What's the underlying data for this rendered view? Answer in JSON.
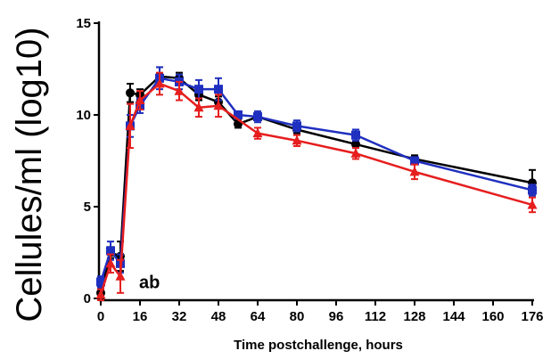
{
  "chart_data": {
    "type": "line",
    "xlabel": "Time postchallenge, hours",
    "ylabel": "Cellules/ml (log10)",
    "xlim": [
      0,
      176
    ],
    "ylim": [
      0,
      15
    ],
    "x_ticks": [
      0,
      16,
      32,
      48,
      64,
      80,
      96,
      112,
      128,
      144,
      160,
      176
    ],
    "y_ticks": [
      0,
      5,
      10,
      15
    ],
    "annotations": [
      {
        "text": "ab",
        "x": 12,
        "y": 0.5
      }
    ],
    "series": [
      {
        "color": "#000000",
        "marker": "circle",
        "points": [
          {
            "x": 0,
            "y": 0.3,
            "err": 0.3
          },
          {
            "x": 4,
            "y": 2.5,
            "err": 0.3
          },
          {
            "x": 8,
            "y": 2.3,
            "err": 0.8
          },
          {
            "x": 12,
            "y": 11.2,
            "err": 0.5
          },
          {
            "x": 16,
            "y": 11.1,
            "err": 0.3
          },
          {
            "x": 24,
            "y": 12.1,
            "err": 0.5
          },
          {
            "x": 32,
            "y": 12.0,
            "err": 0.3
          },
          {
            "x": 40,
            "y": 11.1,
            "err": 0.3
          },
          {
            "x": 48,
            "y": 10.7,
            "err": 0.3
          },
          {
            "x": 56,
            "y": 9.5,
            "err": 0.2
          },
          {
            "x": 64,
            "y": 9.9,
            "err": 0.2
          },
          {
            "x": 80,
            "y": 9.2,
            "err": 0.2
          },
          {
            "x": 104,
            "y": 8.4,
            "err": 0.2
          },
          {
            "x": 128,
            "y": 7.6,
            "err": 0.2
          },
          {
            "x": 176,
            "y": 6.3,
            "err": 0.7
          }
        ]
      },
      {
        "color": "#1f2fbf",
        "marker": "square",
        "points": [
          {
            "x": 0,
            "y": 0.9,
            "err": 0.3
          },
          {
            "x": 4,
            "y": 2.6,
            "err": 0.5
          },
          {
            "x": 8,
            "y": 1.9,
            "err": 0.5
          },
          {
            "x": 12,
            "y": 9.4,
            "err": 0.6
          },
          {
            "x": 16,
            "y": 10.5,
            "err": 0.4
          },
          {
            "x": 24,
            "y": 12.0,
            "err": 0.6
          },
          {
            "x": 32,
            "y": 11.8,
            "err": 0.4
          },
          {
            "x": 40,
            "y": 11.4,
            "err": 0.5
          },
          {
            "x": 48,
            "y": 11.4,
            "err": 0.6
          },
          {
            "x": 56,
            "y": 10.0,
            "err": 0.2
          },
          {
            "x": 64,
            "y": 9.9,
            "err": 0.3
          },
          {
            "x": 80,
            "y": 9.4,
            "err": 0.3
          },
          {
            "x": 104,
            "y": 8.9,
            "err": 0.3
          },
          {
            "x": 128,
            "y": 7.5,
            "err": 0.2
          },
          {
            "x": 176,
            "y": 5.9,
            "err": 0.3
          }
        ]
      },
      {
        "color": "#e61e1e",
        "marker": "triangle",
        "points": [
          {
            "x": 0,
            "y": 0.2,
            "err": 0.3
          },
          {
            "x": 4,
            "y": 1.9,
            "err": 0.5
          },
          {
            "x": 8,
            "y": 1.2,
            "err": 0.9
          },
          {
            "x": 12,
            "y": 9.4,
            "err": 1.2
          },
          {
            "x": 16,
            "y": 10.8,
            "err": 0.5
          },
          {
            "x": 24,
            "y": 11.7,
            "err": 0.6
          },
          {
            "x": 32,
            "y": 11.3,
            "err": 0.5
          },
          {
            "x": 40,
            "y": 10.4,
            "err": 0.5
          },
          {
            "x": 48,
            "y": 10.5,
            "err": 0.6
          },
          {
            "x": 64,
            "y": 9.0,
            "err": 0.3
          },
          {
            "x": 80,
            "y": 8.6,
            "err": 0.3
          },
          {
            "x": 104,
            "y": 7.9,
            "err": 0.3
          },
          {
            "x": 128,
            "y": 6.9,
            "err": 0.4
          },
          {
            "x": 176,
            "y": 5.1,
            "err": 0.4
          }
        ]
      }
    ]
  }
}
